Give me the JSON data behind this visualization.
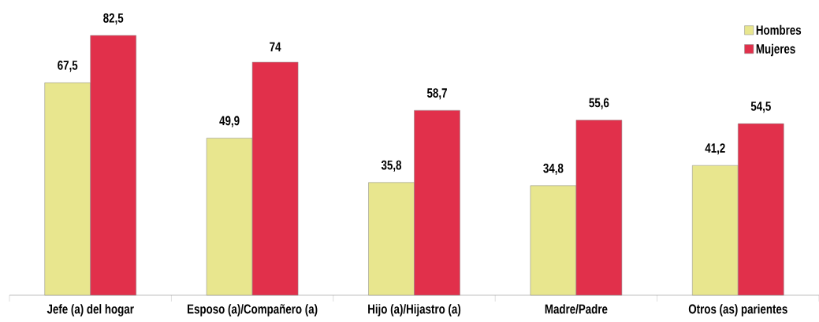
{
  "chart_data": {
    "type": "bar",
    "categories": [
      "Jefe (a) del hogar",
      "Esposo (a)/Compañero (a)",
      "Hijo (a)/Hijastro (a)",
      "Madre/Padre",
      "Otros (as) parientes"
    ],
    "series": [
      {
        "name": "Hombres",
        "color": "#e8e68e",
        "values": [
          67.5,
          49.9,
          35.8,
          34.8,
          41.2
        ],
        "value_labels": [
          "67,5",
          "49,9",
          "35,8",
          "34,8",
          "41,2"
        ]
      },
      {
        "name": "Mujeres",
        "color": "#e1304b",
        "values": [
          82.5,
          74,
          58.7,
          55.6,
          54.5
        ],
        "value_labels": [
          "82,5",
          "74",
          "58,7",
          "55,6",
          "54,5"
        ]
      }
    ],
    "legend": "top right"
  }
}
